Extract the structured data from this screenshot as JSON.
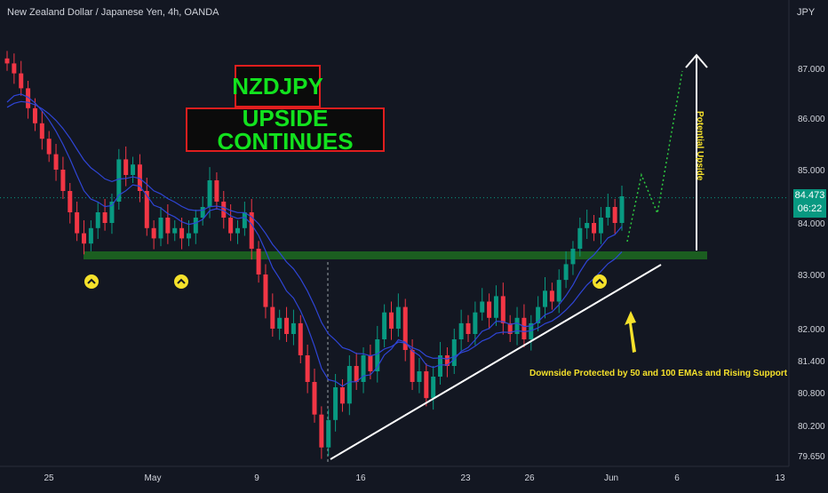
{
  "header": {
    "symbol_title": "New Zealand Dollar / Japanese Yen, 4h, OANDA",
    "currency": "JPY"
  },
  "annotations": {
    "title_main": "NZDJPY",
    "title_sub": "UPSIDE CONTINUES",
    "note": "Downside Protected by 50 and 100 EMAs and Rising Support",
    "potential": "Potential Upside"
  },
  "price_tag": {
    "price": "84.473",
    "countdown": "06:22"
  },
  "colors": {
    "background": "#131722",
    "up_candle": "#089981",
    "down_candle": "#f23645",
    "ema": "#2f45d6",
    "support_zone": "#1b5e20",
    "text_yellow": "#f5e12b",
    "title_green": "#12e21e",
    "title_border": "#e01e1e"
  },
  "chart_data": {
    "type": "candlestick",
    "x_tick_labels": [
      "25",
      "May",
      "9",
      "16",
      "23",
      "26",
      "Jun",
      "6",
      "13"
    ],
    "y_tick_labels": [
      "87.000",
      "86.000",
      "85.000",
      "84.000",
      "83.000",
      "82.000",
      "81.400",
      "80.800",
      "80.200",
      "79.650"
    ],
    "current_price": 84.473,
    "support_level": 83.4,
    "swing_low": 79.65,
    "projected_high": 87.0,
    "closes_approx": [
      87.1,
      86.9,
      86.6,
      86.2,
      85.9,
      85.6,
      85.3,
      85.0,
      84.6,
      84.2,
      83.8,
      83.6,
      83.9,
      84.2,
      84.0,
      84.4,
      85.2,
      84.9,
      85.1,
      84.6,
      83.9,
      83.7,
      84.1,
      83.8,
      83.9,
      83.7,
      83.8,
      84.1,
      84.3,
      84.8,
      84.4,
      84.1,
      83.8,
      83.9,
      84.2,
      83.5,
      83.0,
      82.4,
      82.0,
      82.2,
      81.9,
      82.1,
      81.5,
      81.0,
      80.4,
      79.8,
      80.3,
      80.9,
      80.6,
      81.3,
      81.0,
      81.5,
      81.2,
      81.8,
      82.3,
      82.0,
      82.4,
      81.6,
      81.0,
      81.2,
      80.7,
      81.1,
      81.5,
      81.3,
      81.8,
      82.1,
      81.9,
      82.3,
      82.5,
      82.2,
      82.6,
      82.1,
      81.9,
      82.2,
      81.8,
      82.1,
      82.4,
      82.7,
      82.5,
      82.9,
      83.2,
      83.5,
      83.9,
      84.0,
      83.8,
      84.1,
      84.3,
      84.0,
      84.5
    ]
  }
}
